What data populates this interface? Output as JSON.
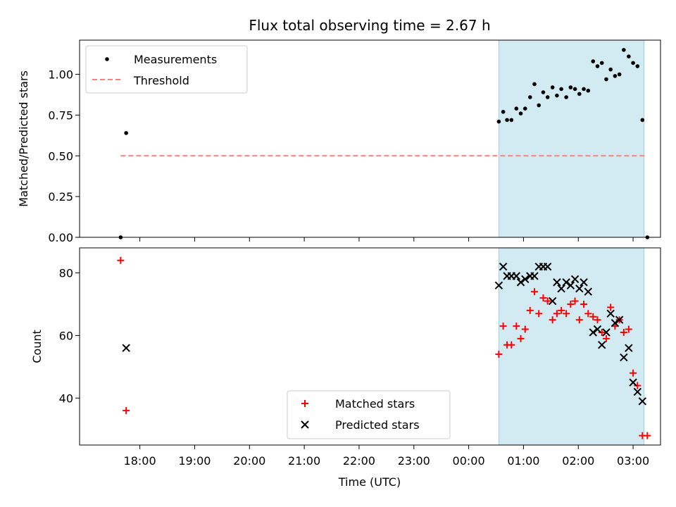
{
  "chart_data": [
    {
      "type": "scatter",
      "title": "Flux total observing time = 2.67 h",
      "xlabel": "",
      "ylabel": "Matched/Predicted stars",
      "ylim": [
        0,
        1.21
      ],
      "yticks": [
        "0.00",
        "0.25",
        "0.50",
        "0.75",
        "1.00"
      ],
      "x_unit": "hours since 17:00 UTC",
      "xlim": [
        -0.1,
        10.5
      ],
      "shaded_interval": [
        7.55,
        10.2
      ],
      "shade_color": "#add8e6",
      "legend": {
        "position": "top-left",
        "entries": [
          "Measurements",
          "Threshold"
        ]
      },
      "series": [
        {
          "name": "Measurements",
          "marker": "dot",
          "color": "#000000",
          "x": [
            0.65,
            0.75,
            7.55,
            7.63,
            7.7,
            7.78,
            7.87,
            7.95,
            8.03,
            8.12,
            8.2,
            8.28,
            8.36,
            8.44,
            8.53,
            8.61,
            8.69,
            8.78,
            8.86,
            8.94,
            9.02,
            9.1,
            9.18,
            9.27,
            9.35,
            9.43,
            9.51,
            9.59,
            9.67,
            9.75,
            9.83,
            9.92,
            10.0,
            10.08,
            10.17,
            10.26
          ],
          "y": [
            0.0,
            0.64,
            0.71,
            0.77,
            0.72,
            0.72,
            0.79,
            0.76,
            0.79,
            0.86,
            0.94,
            0.81,
            0.89,
            0.86,
            0.92,
            0.87,
            0.91,
            0.86,
            0.92,
            0.91,
            0.88,
            0.91,
            0.9,
            1.08,
            1.05,
            1.07,
            0.97,
            1.03,
            0.99,
            1.0,
            1.15,
            1.11,
            1.07,
            1.05,
            0.72,
            0.0
          ]
        },
        {
          "name": "Threshold",
          "style": "dashed",
          "color": "#ff7f7f",
          "x": [
            0.65,
            10.26
          ],
          "y": [
            0.5,
            0.5
          ]
        }
      ]
    },
    {
      "type": "scatter",
      "title": "",
      "xlabel": "Time (UTC)",
      "ylabel": "Count",
      "ylim": [
        25,
        88
      ],
      "yticks": [
        "40",
        "60",
        "80"
      ],
      "x_unit": "hours since 17:00 UTC",
      "xlim": [
        -0.1,
        10.5
      ],
      "xticks": [
        "18:00",
        "19:00",
        "20:00",
        "21:00",
        "22:00",
        "23:00",
        "00:00",
        "01:00",
        "02:00",
        "03:00"
      ],
      "shaded_interval": [
        7.55,
        10.2
      ],
      "shade_color": "#add8e6",
      "legend": {
        "position": "bottom-center",
        "entries": [
          "Matched stars",
          "Predicted stars"
        ]
      },
      "series": [
        {
          "name": "Matched stars",
          "marker": "plus",
          "color": "#ff0000",
          "x": [
            0.65,
            0.75,
            7.55,
            7.63,
            7.7,
            7.78,
            7.87,
            7.95,
            8.03,
            8.12,
            8.2,
            8.28,
            8.36,
            8.44,
            8.53,
            8.61,
            8.69,
            8.78,
            8.86,
            8.94,
            9.02,
            9.1,
            9.18,
            9.27,
            9.35,
            9.43,
            9.51,
            9.59,
            9.67,
            9.75,
            9.83,
            9.92,
            10.0,
            10.08,
            10.17,
            10.26
          ],
          "y": [
            84,
            36,
            54,
            63,
            57,
            57,
            63,
            59,
            62,
            68,
            74,
            67,
            72,
            71,
            65,
            67,
            68,
            67,
            70,
            71,
            65,
            70,
            67,
            66,
            65,
            61,
            59,
            69,
            63,
            65,
            61,
            62,
            48,
            44,
            28,
            28
          ]
        },
        {
          "name": "Predicted stars",
          "marker": "x",
          "color": "#000000",
          "x": [
            0.75,
            7.55,
            7.63,
            7.7,
            7.78,
            7.87,
            7.95,
            8.03,
            8.12,
            8.2,
            8.28,
            8.36,
            8.44,
            8.53,
            8.61,
            8.69,
            8.78,
            8.86,
            8.94,
            9.02,
            9.1,
            9.18,
            9.27,
            9.35,
            9.43,
            9.51,
            9.59,
            9.67,
            9.75,
            9.83,
            9.92,
            10.0,
            10.08,
            10.17
          ],
          "y": [
            56,
            76,
            82,
            79,
            79,
            79,
            77,
            78,
            79,
            79,
            82,
            82,
            82,
            71,
            77,
            75,
            77,
            76,
            78,
            75,
            77,
            74,
            61,
            62,
            57,
            61,
            67,
            64,
            65,
            53,
            56,
            45,
            42,
            39
          ]
        }
      ]
    }
  ]
}
